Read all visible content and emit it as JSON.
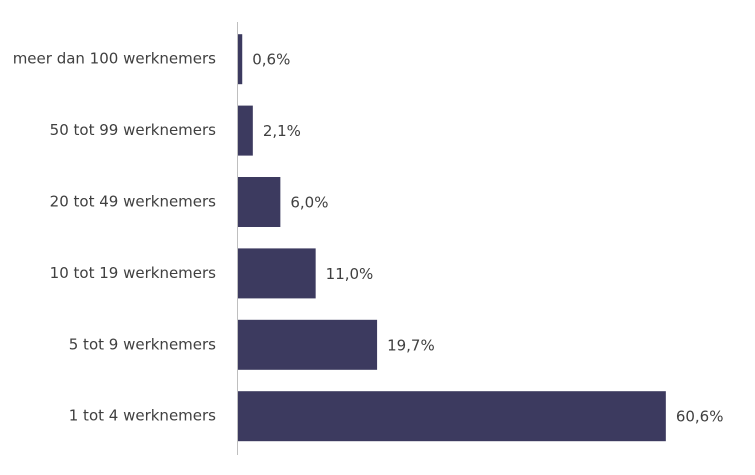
{
  "chart_data": {
    "type": "hbar",
    "categories": [
      "meer dan 100 werknemers",
      "50 tot 99 werknemers",
      "20 tot 49 werknemers",
      "10 tot 19 werknemers",
      "5 tot 9 werknemers",
      "1 tot 4 werknemers"
    ],
    "values": [
      0.6,
      2.1,
      6.0,
      11.0,
      19.7,
      60.6
    ],
    "value_labels": [
      "0,6%",
      "2,1%",
      "6,0%",
      "11,0%",
      "19,7%",
      "60,6%"
    ],
    "color": "#3c3a5f"
  }
}
